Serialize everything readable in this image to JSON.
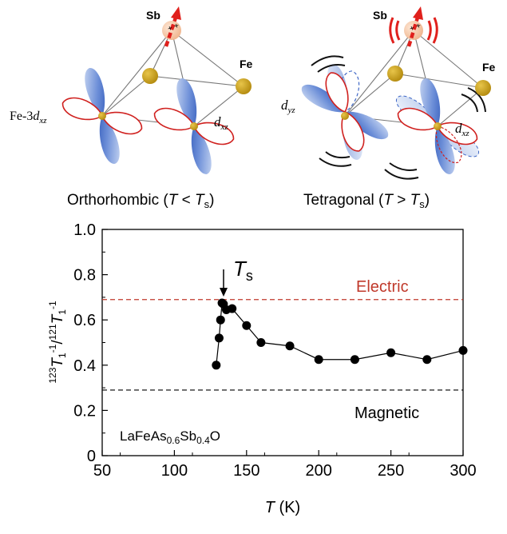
{
  "panel_top": {
    "left": {
      "atom_sb": "Sb",
      "atom_fe": "Fe",
      "orbital_main": {
        "pre": "Fe-3",
        "d": "d",
        "sub": "xz"
      },
      "orbital_right": {
        "d": "d",
        "sub": "xz"
      },
      "caption": {
        "name": "Orthorhombic (",
        "T": "T",
        "rel": " < ",
        "Ts": "T",
        "Ts_sub": "s",
        "close": ")"
      }
    },
    "right": {
      "atom_sb": "Sb",
      "atom_fe": "Fe",
      "orbital_left": {
        "d": "d",
        "sub": "yz"
      },
      "orbital_right": {
        "d": "d",
        "sub": "xz"
      },
      "caption": {
        "name": "Tetragonal (",
        "T": "T",
        "rel": " > ",
        "Ts": "T",
        "Ts_sub": "s",
        "close": ")"
      }
    },
    "colors": {
      "lobe_blue": "#3f67c6",
      "lobe_outline": "#d0211f",
      "fe_gold": "#c29a14",
      "sb_peach": "#f6cfae",
      "arrow_red": "#e0201c"
    }
  },
  "chart_data": {
    "type": "scatter",
    "title": "",
    "xlabel": {
      "T": "T",
      "unit": " (K)"
    },
    "ylabel": {
      "iso1": "123",
      "T1": "T",
      "sub": "1",
      "sup": "-1",
      "slash": "/",
      "iso2": "121"
    },
    "xlim": [
      50,
      300
    ],
    "ylim": [
      0,
      1.0
    ],
    "xticks": [
      "50",
      "100",
      "150",
      "200",
      "250",
      "300"
    ],
    "yticks": [
      "0",
      "0.2",
      "0.4",
      "0.6",
      "0.8",
      "1.0"
    ],
    "series": [
      {
        "x": [
          129,
          131,
          132,
          133,
          134,
          136,
          140,
          150,
          160,
          180,
          200,
          225,
          250,
          275,
          300
        ],
        "y": [
          0.4,
          0.52,
          0.6,
          0.675,
          0.67,
          0.645,
          0.65,
          0.575,
          0.5,
          0.485,
          0.425,
          0.425,
          0.455,
          0.425,
          0.465
        ],
        "color": "#000000"
      }
    ],
    "reference_lines": [
      {
        "label": "Electric",
        "y": 0.69,
        "color": "#c0392b"
      },
      {
        "label": "Magnetic",
        "y": 0.29,
        "color": "#000000"
      }
    ],
    "annotation": {
      "text": "T",
      "sub": "s",
      "x": 134
    },
    "sample": {
      "a": "LaFeAs",
      "s1": "0.6",
      "b": "Sb",
      "s2": "0.4",
      "c": "O"
    }
  }
}
